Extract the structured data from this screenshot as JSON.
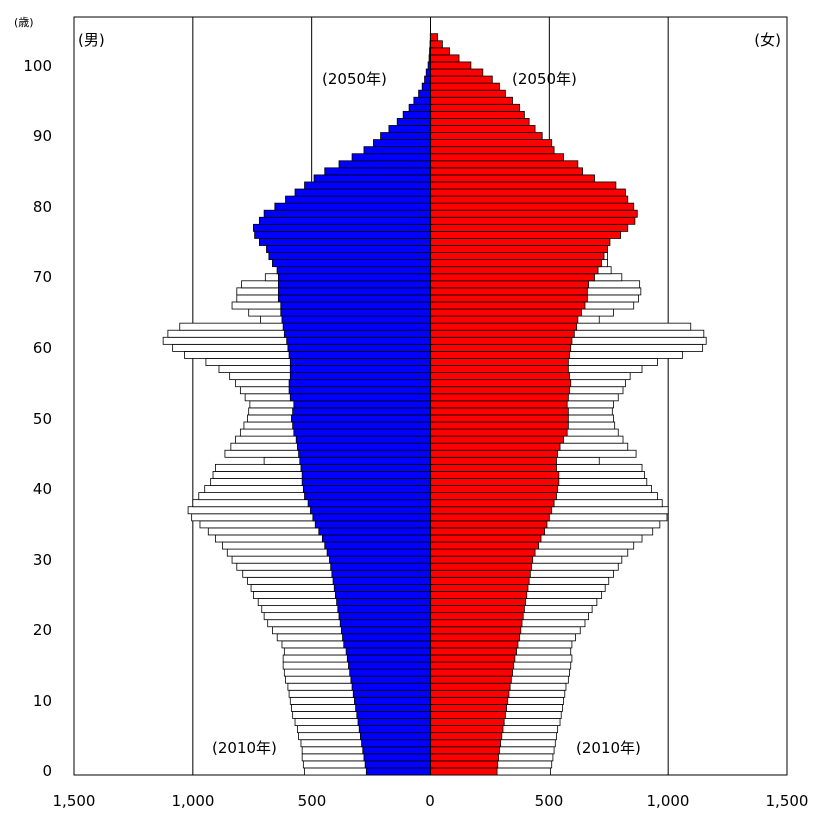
{
  "chart_data": {
    "type": "bar",
    "orientation": "horizontal-population-pyramid",
    "y_unit_label": "(歳)",
    "male_label": "(男)",
    "female_label": "(女)",
    "male_2050_label": "(2050年)",
    "female_2050_label": "(2050年)",
    "male_2010_label": "(2010年)",
    "female_2010_label": "(2010年)",
    "x_ticks": [
      "1,500",
      "1,000",
      "500",
      "0",
      "500",
      "1,000",
      "1,500"
    ],
    "y_ticks": [
      "0",
      "10",
      "20",
      "30",
      "40",
      "50",
      "60",
      "70",
      "80",
      "90",
      "100"
    ],
    "xlim": [
      -1500,
      1500
    ],
    "ylim": [
      0,
      105
    ],
    "grid": "vertical at ±1000 and ±500",
    "ages": [
      0,
      1,
      2,
      3,
      4,
      5,
      6,
      7,
      8,
      9,
      10,
      11,
      12,
      13,
      14,
      15,
      16,
      17,
      18,
      19,
      20,
      21,
      22,
      23,
      24,
      25,
      26,
      27,
      28,
      29,
      30,
      31,
      32,
      33,
      34,
      35,
      36,
      37,
      38,
      39,
      40,
      41,
      42,
      43,
      44,
      45,
      46,
      47,
      48,
      49,
      50,
      51,
      52,
      53,
      54,
      55,
      56,
      57,
      58,
      59,
      60,
      61,
      62,
      63,
      64,
      65,
      66,
      67,
      68,
      69,
      70,
      71,
      72,
      73,
      74,
      75,
      76,
      77,
      78,
      79,
      80,
      81,
      82,
      83,
      84,
      85,
      86,
      87,
      88,
      89,
      90,
      91,
      92,
      93,
      94,
      95,
      96,
      97,
      98,
      99,
      100,
      101,
      102,
      103,
      104
    ],
    "series": [
      {
        "name": "男 2010年",
        "color": "#ffffff",
        "values": [
          530,
          535,
          540,
          540,
          545,
          555,
          560,
          570,
          580,
          585,
          590,
          595,
          600,
          610,
          615,
          620,
          620,
          615,
          625,
          645,
          665,
          685,
          700,
          710,
          725,
          745,
          755,
          770,
          790,
          815,
          835,
          855,
          875,
          905,
          935,
          970,
          1005,
          1020,
          1000,
          975,
          950,
          925,
          915,
          905,
          700,
          865,
          840,
          820,
          800,
          785,
          770,
          765,
          760,
          780,
          800,
          820,
          845,
          890,
          945,
          1035,
          1085,
          1125,
          1105,
          1055,
          715,
          765,
          835,
          815,
          815,
          795,
          695,
          645,
          615,
          605,
          585,
          575,
          565,
          545,
          515,
          480,
          445,
          405,
          355,
          315,
          275,
          240,
          200,
          165,
          135,
          105,
          82,
          62,
          48,
          35,
          25,
          18,
          12,
          7,
          5,
          3,
          2,
          1,
          0,
          0,
          0
        ],
        "values_note": "thousands of persons, age 0..104"
      },
      {
        "name": "男 2050年",
        "color": "#0000ff",
        "values": [
          270,
          275,
          280,
          285,
          290,
          295,
          300,
          305,
          310,
          315,
          320,
          325,
          330,
          335,
          340,
          345,
          350,
          355,
          365,
          370,
          375,
          380,
          385,
          390,
          395,
          400,
          405,
          410,
          415,
          420,
          425,
          435,
          445,
          455,
          470,
          485,
          495,
          505,
          515,
          530,
          535,
          540,
          540,
          545,
          550,
          555,
          560,
          565,
          575,
          580,
          585,
          580,
          575,
          590,
          595,
          595,
          590,
          590,
          590,
          595,
          600,
          605,
          615,
          620,
          625,
          630,
          630,
          640,
          640,
          640,
          640,
          645,
          665,
          680,
          690,
          720,
          740,
          745,
          720,
          700,
          655,
          610,
          570,
          530,
          490,
          445,
          385,
          330,
          280,
          240,
          210,
          175,
          140,
          115,
          90,
          70,
          50,
          35,
          25,
          18,
          10,
          6,
          4,
          2,
          1
        ],
        "values_note": "thousands of persons, age 0..104"
      },
      {
        "name": "女 2010年",
        "color": "#ffffff",
        "values": [
          505,
          510,
          515,
          520,
          525,
          530,
          535,
          545,
          550,
          555,
          560,
          565,
          570,
          580,
          585,
          590,
          595,
          590,
          595,
          610,
          630,
          650,
          665,
          680,
          700,
          720,
          735,
          750,
          770,
          790,
          805,
          830,
          855,
          890,
          935,
          965,
          995,
          1000,
          975,
          955,
          930,
          910,
          900,
          890,
          710,
          865,
          830,
          810,
          790,
          775,
          770,
          765,
          770,
          790,
          810,
          820,
          840,
          890,
          955,
          1060,
          1145,
          1160,
          1150,
          1095,
          710,
          770,
          855,
          875,
          885,
          880,
          805,
          760,
          745,
          745,
          745,
          750,
          755,
          770,
          790,
          825,
          810,
          735,
          690,
          645,
          595,
          545,
          485,
          425,
          365,
          310,
          262,
          215,
          180,
          148,
          118,
          92,
          70,
          52,
          38,
          26,
          18,
          11,
          7,
          4,
          2
        ]
      },
      {
        "name": "女 2050年",
        "color": "#ff0000",
        "values": [
          280,
          283,
          286,
          290,
          295,
          300,
          305,
          310,
          315,
          320,
          325,
          330,
          335,
          340,
          345,
          350,
          355,
          362,
          368,
          375,
          380,
          385,
          390,
          395,
          400,
          405,
          410,
          415,
          420,
          425,
          430,
          440,
          455,
          465,
          480,
          490,
          500,
          510,
          520,
          530,
          535,
          540,
          540,
          530,
          530,
          535,
          545,
          560,
          575,
          580,
          580,
          580,
          575,
          580,
          585,
          590,
          585,
          580,
          580,
          585,
          590,
          595,
          605,
          615,
          620,
          635,
          650,
          660,
          660,
          665,
          690,
          705,
          720,
          730,
          745,
          755,
          800,
          830,
          860,
          870,
          855,
          830,
          820,
          780,
          690,
          640,
          620,
          560,
          520,
          510,
          470,
          440,
          415,
          395,
          375,
          345,
          315,
          290,
          260,
          220,
          170,
          120,
          80,
          50,
          30
        ]
      }
    ]
  }
}
